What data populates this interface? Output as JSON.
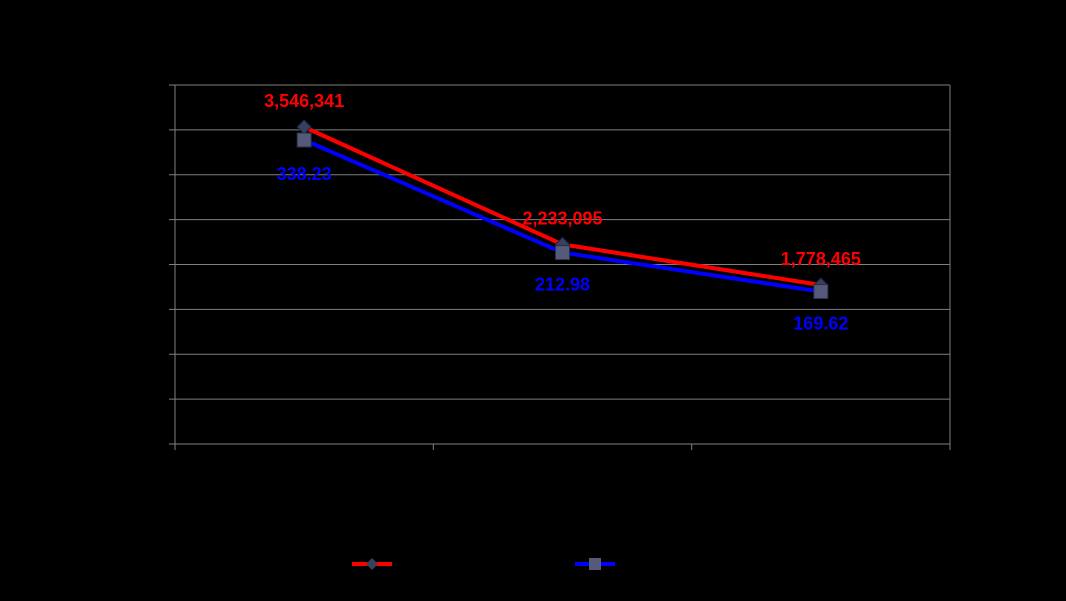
{
  "chart_data": {
    "type": "line",
    "categories": [
      "",
      "",
      ""
    ],
    "series": [
      {
        "values": [
          3546341,
          2233095,
          1778465
        ],
        "labels": [
          "3,546,341",
          "2,233,095",
          "1,778,465"
        ],
        "color": "#ff0000",
        "marker": "diamond"
      },
      {
        "values": [
          338.23,
          212.98,
          169.62
        ],
        "labels": [
          "338.23",
          "212.98",
          "169.62"
        ],
        "color": "#0000ff",
        "marker": "square"
      }
    ],
    "title": "",
    "xlabel": "",
    "ylabel": "",
    "grid": true,
    "legend_position": "bottom",
    "colors": {
      "background": "#000000",
      "grid": "#808080",
      "marker": "#3a3f5c"
    }
  }
}
